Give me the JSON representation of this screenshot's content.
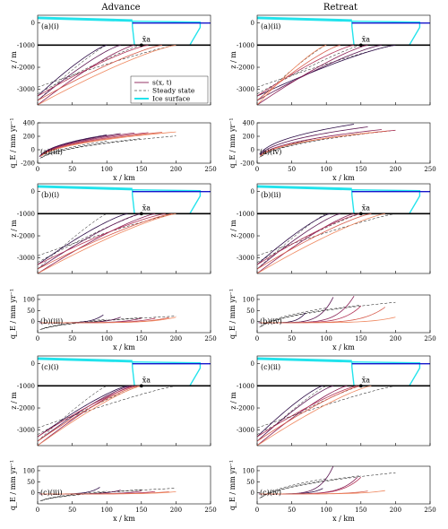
{
  "columns": [
    "Advance",
    "Retreat"
  ],
  "colors": {
    "ice": "#21e3ec",
    "ocean_line": "#1515cc",
    "bed": "#000000",
    "steady": "#000000",
    "profiles": [
      "#2b0a45",
      "#5a1450",
      "#8a2056",
      "#b33458",
      "#d75a4a",
      "#ef8860"
    ]
  },
  "legend": {
    "s_label": "s(x, t)",
    "steady_label": "Steady state",
    "ice_label": "Ice surface"
  },
  "xa_label": "x̃a",
  "axes": {
    "z_ylabel": "z / m",
    "q_ylabel": "q_E / mm yr⁻¹",
    "xlabel": "x / km",
    "xticks": [
      0,
      50,
      100,
      150,
      200,
      250
    ],
    "z_yticks": [
      -1000,
      -2000,
      -3000
    ],
    "z_ylim": [
      -3700,
      350
    ],
    "xlim": [
      0,
      250
    ]
  },
  "chart_data": [
    {
      "type": "line",
      "label": "(a)(i)",
      "panel": "a",
      "column": 0,
      "kind": "z",
      "glx": 137,
      "front": 150,
      "cavity_front": 140,
      "profile_lengths": [
        100,
        120,
        140,
        160,
        180,
        200
      ],
      "steady_lengths": [
        100,
        150,
        200
      ],
      "show_legend": true
    },
    {
      "type": "line",
      "label": "(a)(ii)",
      "panel": "a",
      "column": 1,
      "kind": "z",
      "glx": 137,
      "front": 150,
      "cavity_front": 140,
      "profile_lengths": [
        200,
        180,
        160,
        140,
        120,
        100
      ],
      "steady_lengths": [
        100,
        150,
        200
      ]
    },
    {
      "type": "line",
      "label": "(a)(iii)",
      "panel": "a",
      "column": 0,
      "kind": "q",
      "ylim": [
        -200,
        400
      ],
      "yticks": [
        -200,
        0,
        200,
        400
      ],
      "profile_lengths": [
        100,
        120,
        140,
        160,
        180,
        200
      ],
      "qmax": [
        220,
        240,
        250,
        255,
        260,
        265
      ],
      "steady_lengths": [
        100,
        150,
        200
      ]
    },
    {
      "type": "line",
      "label": "(a)(iv)",
      "panel": "a",
      "column": 1,
      "kind": "q",
      "ylim": [
        -200,
        400
      ],
      "yticks": [
        -200,
        0,
        200,
        400
      ],
      "profile_lengths": [
        140,
        160,
        180,
        200,
        190,
        170
      ],
      "qmax": [
        380,
        340,
        300,
        290,
        280,
        260
      ],
      "steady_lengths": [
        100,
        150,
        200
      ]
    },
    {
      "type": "line",
      "label": "(b)(i)",
      "panel": "b",
      "column": 0,
      "kind": "z",
      "glx": 137,
      "front": 150,
      "cavity_front": 140,
      "profile_lengths": [
        130,
        150,
        170,
        185,
        195,
        200
      ],
      "steady_lengths": [
        100,
        150,
        200
      ]
    },
    {
      "type": "line",
      "label": "(b)(ii)",
      "panel": "b",
      "column": 1,
      "kind": "z",
      "glx": 137,
      "front": 150,
      "cavity_front": 140,
      "profile_lengths": [
        105,
        120,
        140,
        150,
        165,
        185
      ],
      "steady_lengths": [
        100,
        150,
        200
      ]
    },
    {
      "type": "line",
      "label": "(b)(iii)",
      "panel": "b",
      "column": 0,
      "kind": "q",
      "ylim": [
        -50,
        120
      ],
      "yticks": [
        0,
        50,
        100
      ],
      "profile_lengths": [
        95,
        120,
        150,
        170,
        190,
        200
      ],
      "qmax": [
        30,
        20,
        15,
        15,
        18,
        20
      ],
      "steady_lengths": [
        100,
        150,
        200
      ]
    },
    {
      "type": "line",
      "label": "(b)(iv)",
      "panel": "b",
      "column": 1,
      "kind": "q",
      "ylim": [
        -50,
        120
      ],
      "yticks": [
        0,
        50,
        100
      ],
      "profile_lengths": [
        70,
        110,
        140,
        150,
        185,
        200
      ],
      "qmax": [
        40,
        110,
        115,
        70,
        65,
        20
      ],
      "steady_lengths": [
        100,
        150,
        200
      ]
    },
    {
      "type": "line",
      "label": "(c)(i)",
      "panel": "c",
      "column": 0,
      "kind": "z",
      "glx": 137,
      "front": 150,
      "cavity_front": 140,
      "profile_lengths": [
        130,
        134,
        138,
        142,
        146,
        150
      ],
      "steady_lengths": [
        100,
        150,
        200
      ]
    },
    {
      "type": "line",
      "label": "(c)(ii)",
      "panel": "c",
      "column": 1,
      "kind": "z",
      "glx": 137,
      "front": 150,
      "cavity_front": 140,
      "profile_lengths": [
        95,
        110,
        130,
        145,
        150,
        165
      ],
      "steady_lengths": [
        100,
        150,
        200
      ]
    },
    {
      "type": "line",
      "label": "(c)(iii)",
      "panel": "c",
      "column": 0,
      "kind": "q",
      "ylim": [
        -50,
        120
      ],
      "yticks": [
        0,
        50,
        100
      ],
      "profile_lengths": [
        90,
        120,
        150,
        170,
        190,
        200
      ],
      "qmax": [
        25,
        12,
        8,
        6,
        5,
        5
      ],
      "steady_lengths": [
        100,
        150,
        200
      ]
    },
    {
      "type": "line",
      "label": "(c)(iv)",
      "panel": "c",
      "column": 1,
      "kind": "q",
      "ylim": [
        -50,
        120
      ],
      "yticks": [
        0,
        50,
        100
      ],
      "profile_lengths": [
        95,
        110,
        145,
        150,
        160,
        185
      ],
      "qmax": [
        20,
        120,
        70,
        70,
        8,
        10
      ],
      "steady_lengths": [
        100,
        150,
        200
      ]
    }
  ]
}
